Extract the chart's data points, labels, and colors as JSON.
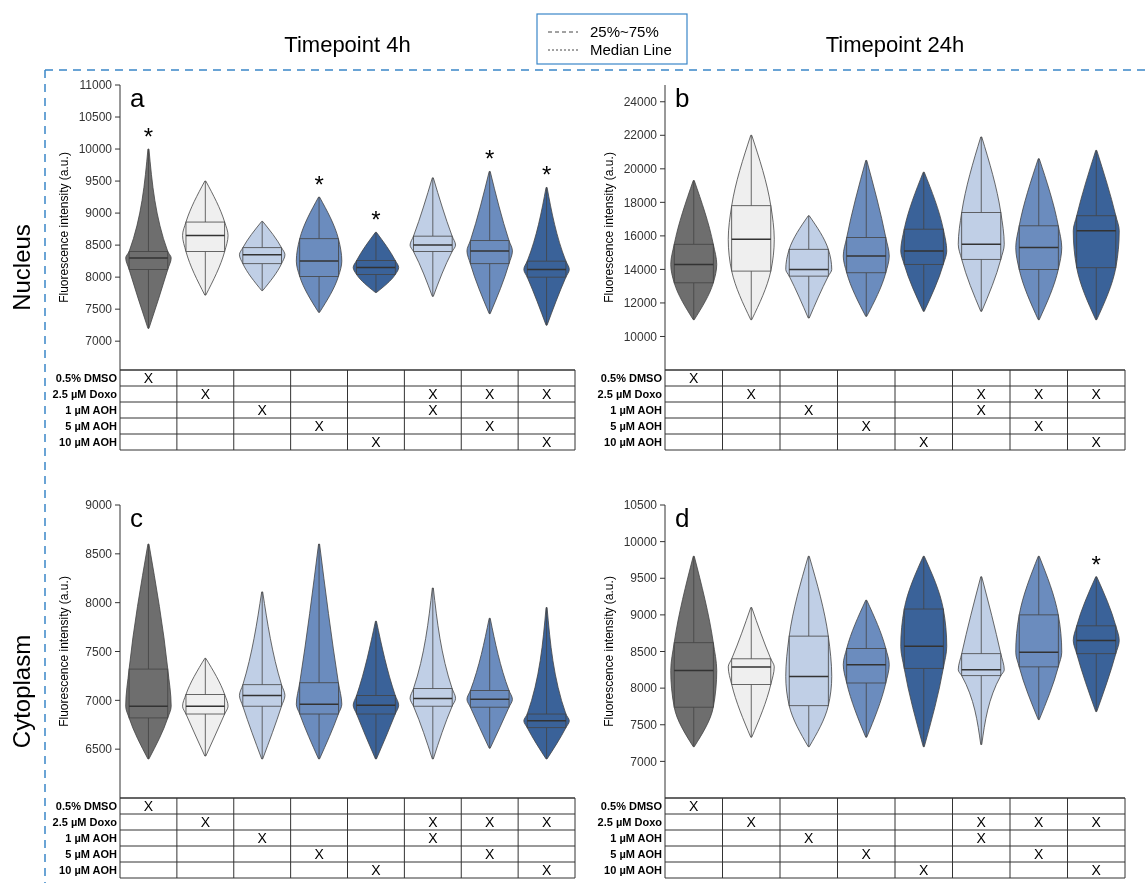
{
  "chart_data": [
    {
      "type": "box",
      "title": "Timepoint 4h",
      "ylabel": "Fluorescence intensity (a.u.)",
      "annotations": [
        "a",
        "Nucleus",
        "25%~75%",
        "Median Line"
      ],
      "categories": [
        null,
        null,
        null,
        null,
        null,
        null,
        null,
        null
      ],
      "ylim": [
        6550,
        11000
      ],
      "yticks": [
        7000,
        7500,
        8000,
        8500,
        9000,
        9500,
        10000,
        10500,
        11000
      ],
      "colors": [
        "#6e6e6e",
        "#efefef",
        "#c0cfe6",
        "#6b8cbe",
        "#3a6299",
        "#c0cfe6",
        "#6b8cbe",
        "#3a6299"
      ],
      "boxes": [
        {
          "low": 7200,
          "q1": 8120,
          "median": 8300,
          "q3": 8400,
          "high": 10000
        },
        {
          "low": 7720,
          "q1": 8400,
          "median": 8650,
          "q3": 8860,
          "high": 9500
        },
        {
          "low": 7790,
          "q1": 8210,
          "median": 8350,
          "q3": 8460,
          "high": 8870
        },
        {
          "low": 7450,
          "q1": 8010,
          "median": 8250,
          "q3": 8600,
          "high": 9250
        },
        {
          "low": 7760,
          "q1": 8040,
          "median": 8150,
          "q3": 8260,
          "high": 8700
        },
        {
          "low": 7700,
          "q1": 8400,
          "median": 8500,
          "q3": 8640,
          "high": 9550
        },
        {
          "low": 7430,
          "q1": 8210,
          "median": 8410,
          "q3": 8570,
          "high": 9650
        },
        {
          "low": 7250,
          "q1": 8000,
          "median": 8120,
          "q3": 8250,
          "high": 9400
        }
      ],
      "value_labels": [
        "*",
        null,
        null,
        "*",
        "*",
        null,
        "*",
        "*"
      ]
    },
    {
      "type": "box",
      "title": "Timepoint 24h",
      "ylabel": "Fluorescence intensity (a.u.)",
      "annotations": [
        "b"
      ],
      "categories": [
        null,
        null,
        null,
        null,
        null,
        null,
        null,
        null
      ],
      "ylim": [
        8000,
        25000
      ],
      "yticks": [
        10000,
        12000,
        14000,
        16000,
        18000,
        20000,
        22000,
        24000
      ],
      "colors": [
        "#6e6e6e",
        "#efefef",
        "#c0cfe6",
        "#6b8cbe",
        "#3a6299",
        "#c0cfe6",
        "#6b8cbe",
        "#3a6299"
      ],
      "boxes": [
        {
          "low": 11000,
          "q1": 13200,
          "median": 14300,
          "q3": 15500,
          "high": 19300
        },
        {
          "low": 11000,
          "q1": 13900,
          "median": 15800,
          "q3": 17800,
          "high": 22000
        },
        {
          "low": 11100,
          "q1": 13600,
          "median": 14000,
          "q3": 15200,
          "high": 17200
        },
        {
          "low": 11200,
          "q1": 13800,
          "median": 14800,
          "q3": 15900,
          "high": 20500
        },
        {
          "low": 11500,
          "q1": 14300,
          "median": 15100,
          "q3": 16400,
          "high": 19800
        },
        {
          "low": 11500,
          "q1": 14600,
          "median": 15500,
          "q3": 17400,
          "high": 21900
        },
        {
          "low": 11000,
          "q1": 14000,
          "median": 15300,
          "q3": 16600,
          "high": 20600
        },
        {
          "low": 11000,
          "q1": 14100,
          "median": 16300,
          "q3": 17200,
          "high": 21100
        }
      ]
    },
    {
      "type": "heatmap",
      "categories": [
        null,
        null,
        null,
        null,
        null,
        null,
        null,
        null
      ],
      "y_categories": [
        "0.5% DMSO",
        "2.5 µM Doxo",
        "1 µM AOH",
        "5 µM AOH",
        "10 µM AOH"
      ],
      "cells": [
        [
          null,
          null,
          null,
          null,
          null,
          null,
          null,
          null
        ],
        [
          null,
          null,
          null,
          null,
          null,
          null,
          null,
          null
        ],
        [
          null,
          null,
          null,
          null,
          null,
          null,
          null,
          null
        ],
        [
          null,
          null,
          null,
          null,
          null,
          null,
          null,
          null
        ],
        [
          null,
          null,
          null,
          null,
          null,
          null,
          null,
          null
        ]
      ],
      "cell_labels": [
        [
          "X",
          null,
          null,
          null,
          null,
          null,
          null,
          null
        ],
        [
          null,
          "X",
          null,
          null,
          null,
          "X",
          "X",
          "X"
        ],
        [
          null,
          null,
          "X",
          null,
          null,
          "X",
          null,
          null
        ],
        [
          null,
          null,
          null,
          "X",
          null,
          null,
          "X",
          null
        ],
        [
          null,
          null,
          null,
          null,
          "X",
          null,
          null,
          "X"
        ]
      ]
    },
    {
      "type": "heatmap",
      "categories": [
        null,
        null,
        null,
        null,
        null,
        null,
        null,
        null
      ],
      "y_categories": [
        "0.5% DMSO",
        "2.5 µM Doxo",
        "1 µM AOH",
        "5 µM AOH",
        "10 µM AOH"
      ],
      "cells": [
        [
          null,
          null,
          null,
          null,
          null,
          null,
          null,
          null
        ],
        [
          null,
          null,
          null,
          null,
          null,
          null,
          null,
          null
        ],
        [
          null,
          null,
          null,
          null,
          null,
          null,
          null,
          null
        ],
        [
          null,
          null,
          null,
          null,
          null,
          null,
          null,
          null
        ],
        [
          null,
          null,
          null,
          null,
          null,
          null,
          null,
          null
        ]
      ],
      "cell_labels": [
        [
          "X",
          null,
          null,
          null,
          null,
          null,
          null,
          null
        ],
        [
          null,
          "X",
          null,
          null,
          null,
          "X",
          "X",
          "X"
        ],
        [
          null,
          null,
          "X",
          null,
          null,
          "X",
          null,
          null
        ],
        [
          null,
          null,
          null,
          "X",
          null,
          null,
          "X",
          null
        ],
        [
          null,
          null,
          null,
          null,
          "X",
          null,
          null,
          "X"
        ]
      ]
    },
    {
      "type": "box",
      "ylabel": "Fluorescence intensity (a.u.)",
      "annotations": [
        "c",
        "Cytoplasm"
      ],
      "categories": [
        null,
        null,
        null,
        null,
        null,
        null,
        null,
        null
      ],
      "ylim": [
        6000,
        9000
      ],
      "yticks": [
        6500,
        7000,
        7500,
        8000,
        8500,
        9000
      ],
      "colors": [
        "#6e6e6e",
        "#efefef",
        "#c0cfe6",
        "#6b8cbe",
        "#3a6299",
        "#c0cfe6",
        "#6b8cbe",
        "#3a6299"
      ],
      "boxes": [
        {
          "low": 6400,
          "q1": 6820,
          "median": 6940,
          "q3": 7320,
          "high": 8600
        },
        {
          "low": 6430,
          "q1": 6860,
          "median": 6940,
          "q3": 7060,
          "high": 7430
        },
        {
          "low": 6400,
          "q1": 6940,
          "median": 7050,
          "q3": 7160,
          "high": 8110
        },
        {
          "low": 6400,
          "q1": 6860,
          "median": 6960,
          "q3": 7180,
          "high": 8600
        },
        {
          "low": 6400,
          "q1": 6860,
          "median": 6950,
          "q3": 7050,
          "high": 7810
        },
        {
          "low": 6400,
          "q1": 6940,
          "median": 7020,
          "q3": 7120,
          "high": 8150
        },
        {
          "low": 6510,
          "q1": 6930,
          "median": 7010,
          "q3": 7100,
          "high": 7840
        },
        {
          "low": 6400,
          "q1": 6720,
          "median": 6790,
          "q3": 6860,
          "high": 7950
        }
      ]
    },
    {
      "type": "box",
      "ylabel": "Fluorescence intensity (a.u.)",
      "annotations": [
        "d"
      ],
      "categories": [
        null,
        null,
        null,
        null,
        null,
        null,
        null,
        null
      ],
      "ylim": [
        6500,
        10500
      ],
      "yticks": [
        7000,
        7500,
        8000,
        8500,
        9000,
        9500,
        10000,
        10500
      ],
      "colors": [
        "#6e6e6e",
        "#efefef",
        "#c0cfe6",
        "#6b8cbe",
        "#3a6299",
        "#c0cfe6",
        "#6b8cbe",
        "#3a6299"
      ],
      "boxes": [
        {
          "low": 7200,
          "q1": 7740,
          "median": 8240,
          "q3": 8620,
          "high": 9800
        },
        {
          "low": 7330,
          "q1": 8050,
          "median": 8290,
          "q3": 8400,
          "high": 9100
        },
        {
          "low": 7200,
          "q1": 7760,
          "median": 8160,
          "q3": 8710,
          "high": 9800
        },
        {
          "low": 7330,
          "q1": 8070,
          "median": 8320,
          "q3": 8540,
          "high": 9200
        },
        {
          "low": 7200,
          "q1": 8270,
          "median": 8570,
          "q3": 9080,
          "high": 9800
        },
        {
          "low": 7230,
          "q1": 8170,
          "median": 8250,
          "q3": 8470,
          "high": 9520
        },
        {
          "low": 7570,
          "q1": 8290,
          "median": 8490,
          "q3": 9000,
          "high": 9800
        },
        {
          "low": 7680,
          "q1": 8470,
          "median": 8650,
          "q3": 8850,
          "high": 9520
        }
      ],
      "value_labels": [
        null,
        null,
        null,
        null,
        null,
        null,
        null,
        "*"
      ]
    },
    {
      "type": "heatmap",
      "categories": [
        null,
        null,
        null,
        null,
        null,
        null,
        null,
        null
      ],
      "y_categories": [
        "0.5% DMSO",
        "2.5 µM Doxo",
        "1 µM AOH",
        "5 µM AOH",
        "10 µM AOH"
      ],
      "cells": [
        [
          null,
          null,
          null,
          null,
          null,
          null,
          null,
          null
        ],
        [
          null,
          null,
          null,
          null,
          null,
          null,
          null,
          null
        ],
        [
          null,
          null,
          null,
          null,
          null,
          null,
          null,
          null
        ],
        [
          null,
          null,
          null,
          null,
          null,
          null,
          null,
          null
        ],
        [
          null,
          null,
          null,
          null,
          null,
          null,
          null,
          null
        ]
      ],
      "cell_labels": [
        [
          "X",
          null,
          null,
          null,
          null,
          null,
          null,
          null
        ],
        [
          null,
          "X",
          null,
          null,
          null,
          "X",
          "X",
          "X"
        ],
        [
          null,
          null,
          "X",
          null,
          null,
          "X",
          null,
          null
        ],
        [
          null,
          null,
          null,
          "X",
          null,
          null,
          "X",
          null
        ],
        [
          null,
          null,
          null,
          null,
          "X",
          null,
          null,
          "X"
        ]
      ]
    },
    {
      "type": "heatmap",
      "categories": [
        null,
        null,
        null,
        null,
        null,
        null,
        null,
        null
      ],
      "y_categories": [
        "0.5% DMSO",
        "2.5 µM Doxo",
        "1 µM AOH",
        "5 µM AOH",
        "10 µM AOH"
      ],
      "cells": [
        [
          null,
          null,
          null,
          null,
          null,
          null,
          null,
          null
        ],
        [
          null,
          null,
          null,
          null,
          null,
          null,
          null,
          null
        ],
        [
          null,
          null,
          null,
          null,
          null,
          null,
          null,
          null
        ],
        [
          null,
          null,
          null,
          null,
          null,
          null,
          null,
          null
        ],
        [
          null,
          null,
          null,
          null,
          null,
          null,
          null,
          null
        ]
      ],
      "cell_labels": [
        [
          "X",
          null,
          null,
          null,
          null,
          null,
          null,
          null
        ],
        [
          null,
          "X",
          null,
          null,
          null,
          "X",
          "X",
          "X"
        ],
        [
          null,
          null,
          "X",
          null,
          null,
          "X",
          null,
          null
        ],
        [
          null,
          null,
          null,
          "X",
          null,
          null,
          "X",
          null
        ],
        [
          null,
          null,
          null,
          null,
          "X",
          null,
          null,
          "X"
        ]
      ]
    }
  ]
}
